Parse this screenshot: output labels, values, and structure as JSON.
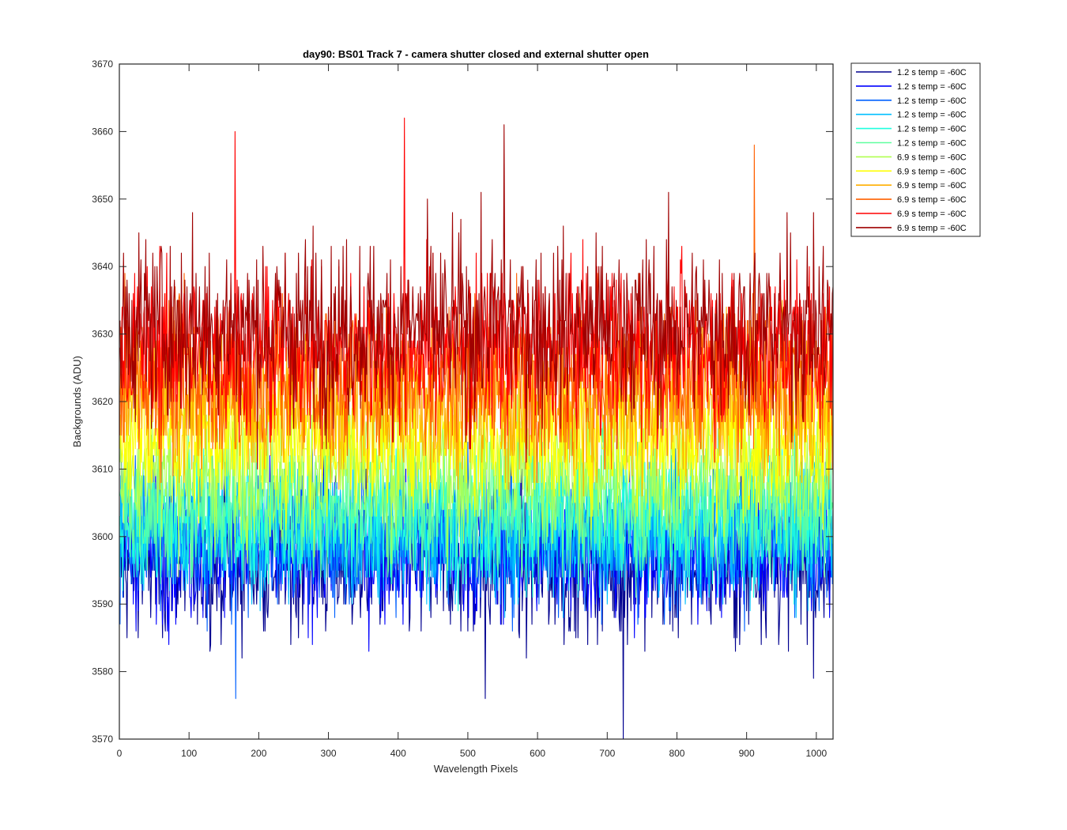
{
  "chart_data": {
    "type": "line",
    "title": "day90: BS01  Track 7 - camera shutter closed and external shutter open",
    "xlabel": "Wavelength Pixels",
    "ylabel": "Backgrounds (ADU)",
    "xlim": [
      0,
      1024
    ],
    "ylim": [
      3570,
      3670
    ],
    "x_ticks": [
      0,
      100,
      200,
      300,
      400,
      500,
      600,
      700,
      800,
      900,
      1000
    ],
    "y_ticks": [
      3570,
      3580,
      3590,
      3600,
      3610,
      3620,
      3630,
      3640,
      3650,
      3660,
      3670
    ],
    "grid": false,
    "legend_position": "outside-top-right",
    "x_points": 1024,
    "series": [
      {
        "name": "1.2 s temp = -60C",
        "color": "#00008f",
        "mean": 3596,
        "spread": 5.5
      },
      {
        "name": "1.2 s temp = -60C",
        "color": "#0000ff",
        "mean": 3598,
        "spread": 5.0
      },
      {
        "name": "1.2 s temp = -60C",
        "color": "#0060ff",
        "mean": 3600,
        "spread": 5.0
      },
      {
        "name": "1.2 s temp = -60C",
        "color": "#00bfff",
        "mean": 3601,
        "spread": 5.0
      },
      {
        "name": "1.2 s temp = -60C",
        "color": "#20ffdf",
        "mean": 3603,
        "spread": 5.0
      },
      {
        "name": "1.2 s temp = -60C",
        "color": "#60ff9f",
        "mean": 3605,
        "spread": 5.0
      },
      {
        "name": "6.9 s temp = -60C",
        "color": "#b0ff50",
        "mean": 3610,
        "spread": 5.0
      },
      {
        "name": "6.9 s temp = -60C",
        "color": "#ffff00",
        "mean": 3615,
        "spread": 5.0
      },
      {
        "name": "6.9 s temp = -60C",
        "color": "#ffaf00",
        "mean": 3620,
        "spread": 5.5
      },
      {
        "name": "6.9 s temp = -60C",
        "color": "#ff6000",
        "mean": 3624,
        "spread": 6.0
      },
      {
        "name": "6.9 s temp = -60C",
        "color": "#ff0000",
        "mean": 3628,
        "spread": 6.0
      },
      {
        "name": "6.9 s temp = -60C",
        "color": "#9f0000",
        "mean": 3631,
        "spread": 6.5
      }
    ],
    "notable_extremes": [
      {
        "x": 166,
        "y": 3660
      },
      {
        "x": 409,
        "y": 3662
      },
      {
        "x": 552,
        "y": 3661
      },
      {
        "x": 911,
        "y": 3658
      },
      {
        "x": 723,
        "y": 3570
      },
      {
        "x": 167,
        "y": 3576
      },
      {
        "x": 525,
        "y": 3576
      }
    ]
  }
}
